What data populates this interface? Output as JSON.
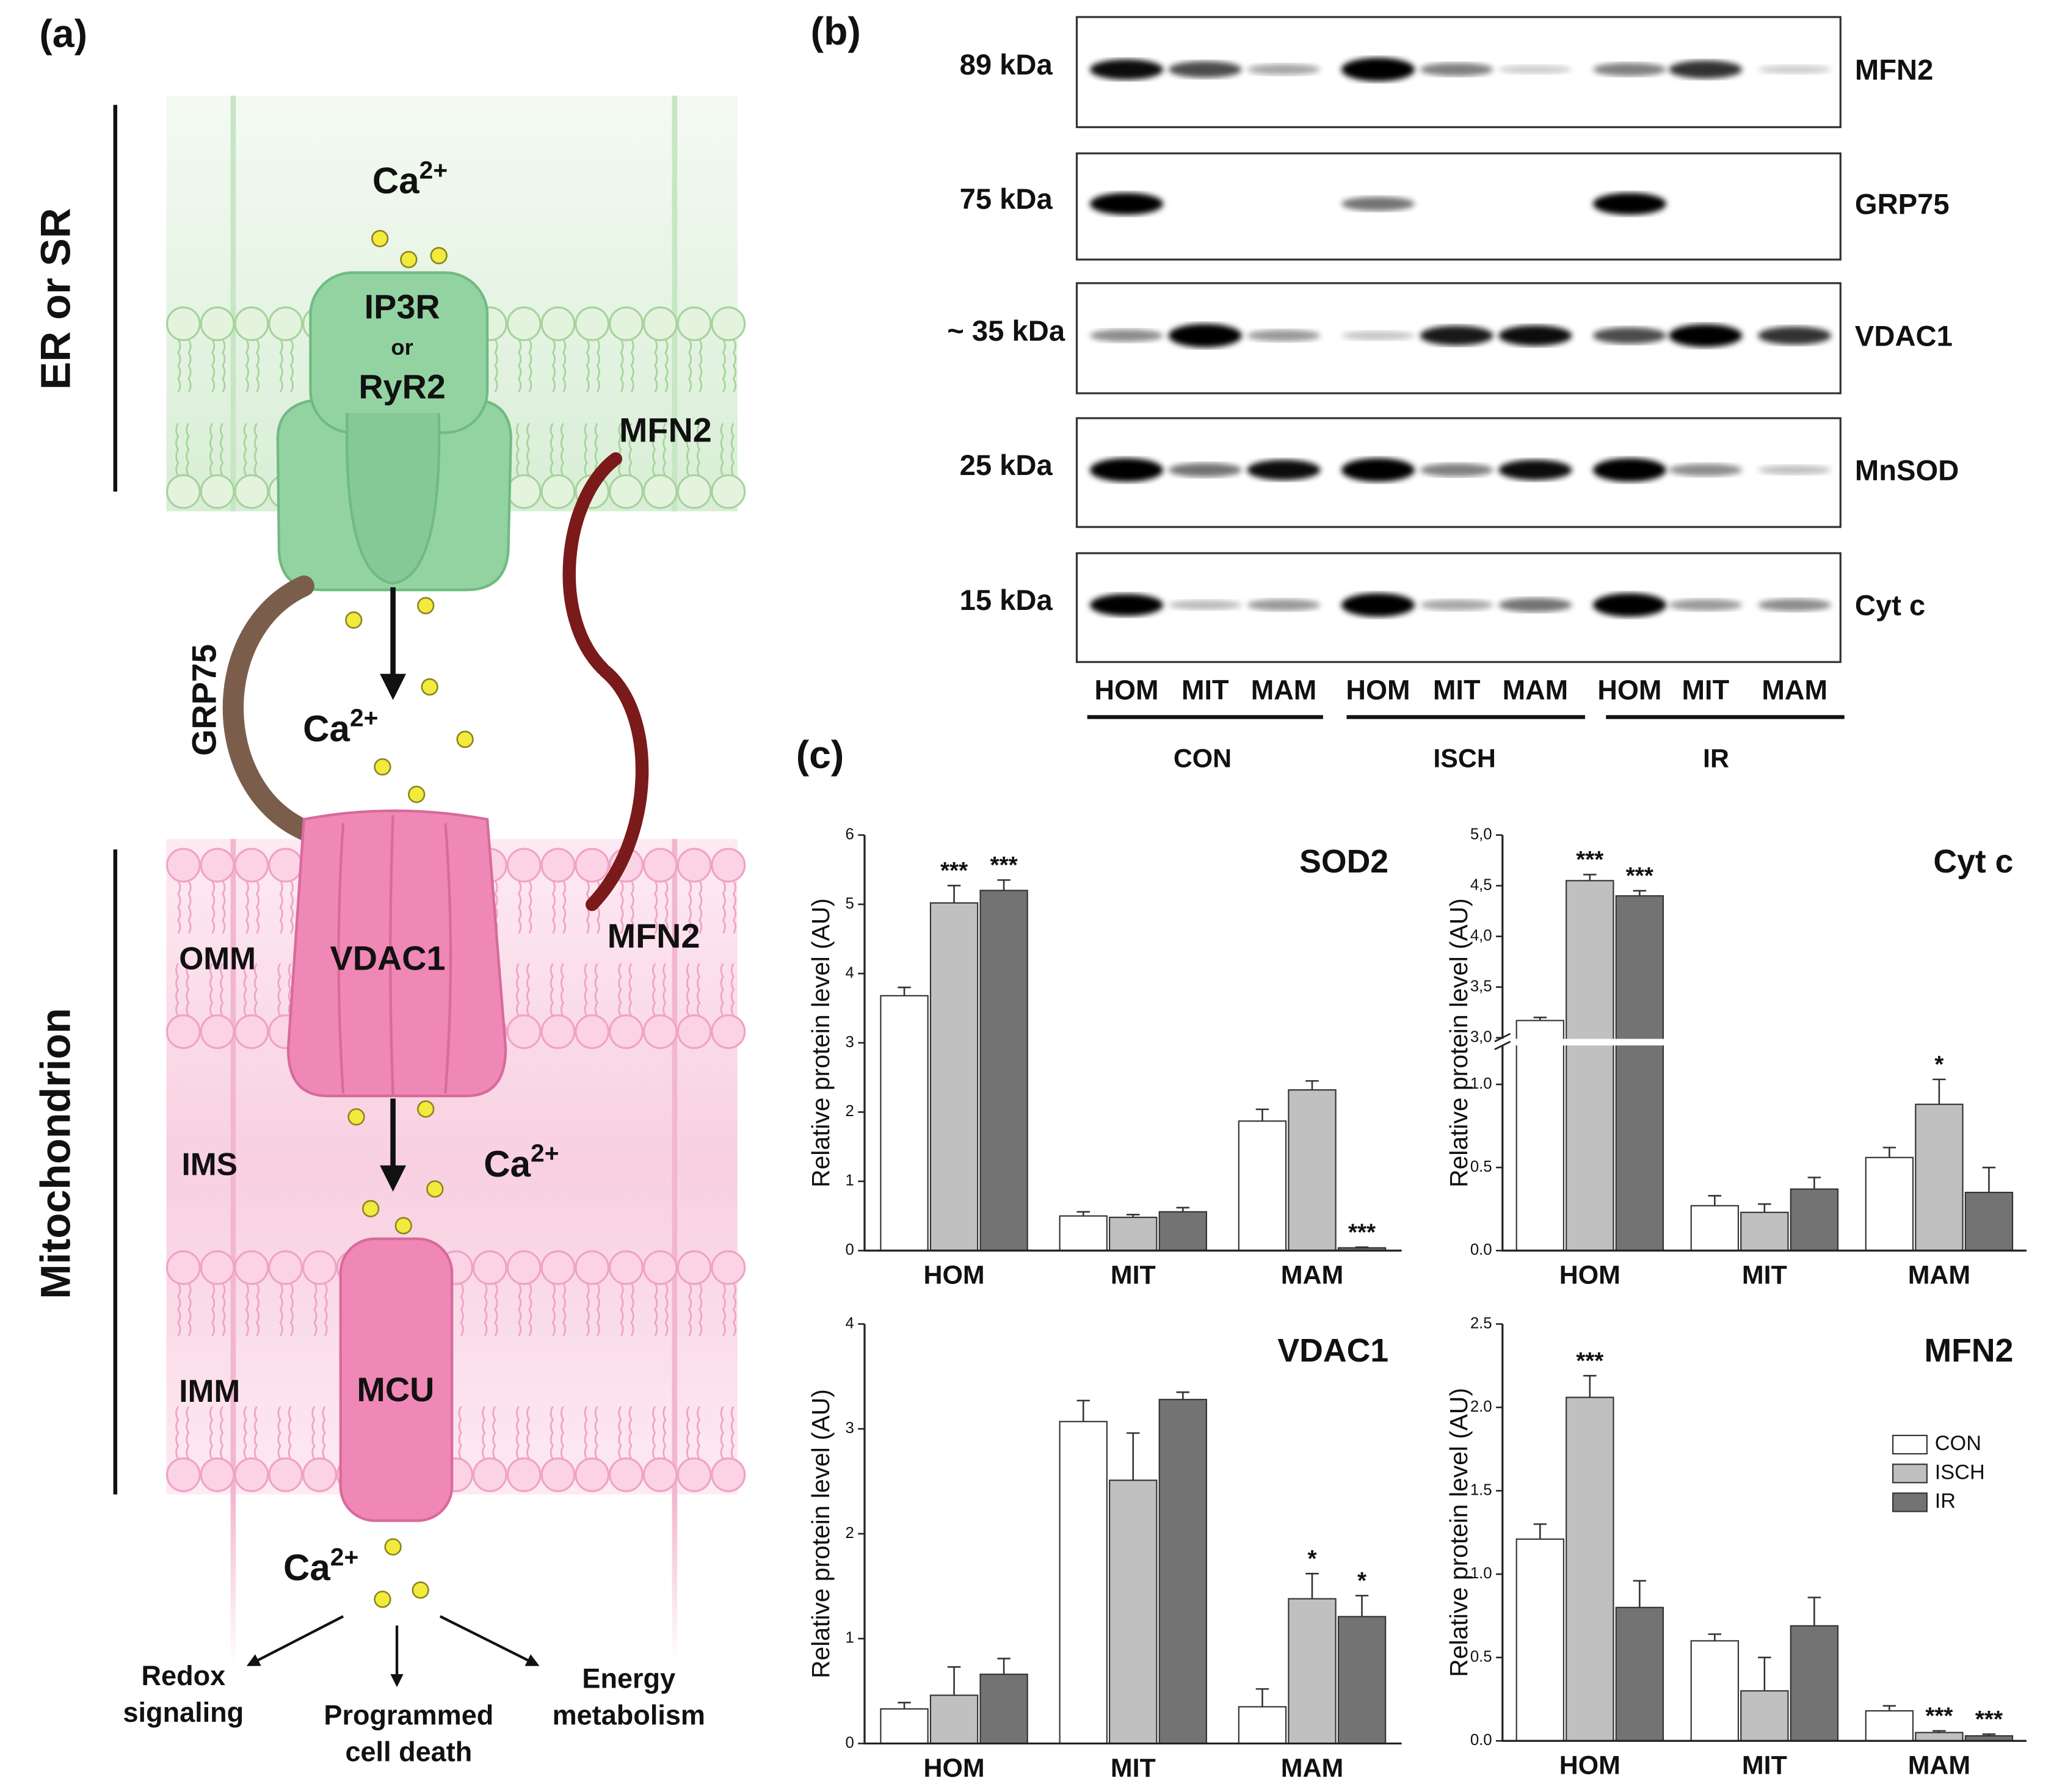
{
  "figure": {
    "panel_labels": [
      "(a)",
      "(b)",
      "(c)"
    ]
  },
  "diagram": {
    "compartments": [
      "ER or SR",
      "Mitochondrion"
    ],
    "channel": [
      "IP3R",
      "or",
      "RyR2"
    ],
    "tethers": [
      "MFN2",
      "GRP75",
      "MFN2"
    ],
    "membranes": [
      "OMM",
      "IMS",
      "IMM"
    ],
    "pores": [
      "VDAC1",
      "MCU"
    ],
    "calcium": [
      {
        "base": "Ca",
        "sup": "2+"
      },
      {
        "base": "Ca",
        "sup": "2+"
      },
      {
        "base": "Ca",
        "sup": "2+"
      },
      {
        "base": "Ca",
        "sup": "2+"
      }
    ],
    "outcomes": [
      [
        "Redox",
        "signaling"
      ],
      [
        "Programmed",
        "cell death"
      ],
      [
        "Energy",
        "metabolism"
      ]
    ]
  },
  "blot": {
    "rows": [
      {
        "marker": "89 kDa",
        "protein": "MFN2"
      },
      {
        "marker": "75 kDa",
        "protein": "GRP75"
      },
      {
        "marker": "~ 35 kDa",
        "protein": "VDAC1"
      },
      {
        "marker": "25 kDa",
        "protein": "MnSOD"
      },
      {
        "marker": "15 kDa",
        "protein": "Cyt c"
      }
    ],
    "lanes": [
      "HOM",
      "MIT",
      "MAM",
      "HOM",
      "MIT",
      "MAM",
      "HOM",
      "MIT",
      "MAM"
    ],
    "groups": [
      "CON",
      "ISCH",
      "IR"
    ]
  },
  "chart_data": [
    {
      "type": "bar",
      "title": "SOD2",
      "ylabel": "Relative protein level (AU)",
      "categories": [
        "HOM",
        "MIT",
        "MAM"
      ],
      "series": [
        {
          "name": "CON",
          "color": "#ffffff",
          "values": [
            3.68,
            0.5,
            1.87
          ],
          "errors": [
            0.12,
            0.06,
            0.17
          ],
          "significance": [
            null,
            null,
            null
          ]
        },
        {
          "name": "ISCH",
          "color": "#c0c0c0",
          "values": [
            5.02,
            0.48,
            2.32
          ],
          "errors": [
            0.25,
            0.04,
            0.13
          ],
          "significance": [
            "***",
            null,
            null
          ]
        },
        {
          "name": "IR",
          "color": "#737373",
          "values": [
            5.2,
            0.56,
            0.04
          ],
          "errors": [
            0.15,
            0.06,
            0.01
          ],
          "significance": [
            "***",
            null,
            "***"
          ]
        }
      ],
      "ylim": [
        0,
        6
      ],
      "yticks": [
        0,
        1,
        2,
        3,
        4,
        5,
        6
      ],
      "legend": null
    },
    {
      "type": "bar",
      "title": "Cyt c",
      "ylabel": "Relative protein level (AU)",
      "categories": [
        "HOM",
        "MIT",
        "MAM"
      ],
      "series": [
        {
          "name": "CON",
          "color": "#ffffff",
          "values": [
            3.17,
            0.27,
            0.56
          ],
          "errors": [
            0.03,
            0.06,
            0.06
          ],
          "significance": [
            null,
            null,
            null
          ]
        },
        {
          "name": "ISCH",
          "color": "#c0c0c0",
          "values": [
            4.55,
            0.23,
            0.88
          ],
          "errors": [
            0.06,
            0.05,
            0.15
          ],
          "significance": [
            "***",
            null,
            "*"
          ]
        },
        {
          "name": "IR",
          "color": "#737373",
          "values": [
            4.4,
            0.37,
            0.35
          ],
          "errors": [
            0.05,
            0.07,
            0.15
          ],
          "significance": [
            "***",
            null,
            null
          ]
        }
      ],
      "ylim": [
        0,
        5
      ],
      "ybreak": [
        1.25,
        2.95
      ],
      "yticks": [
        {
          "value": 0,
          "label": "0.0"
        },
        0.5,
        {
          "value": 1,
          "label": "1.0"
        },
        {
          "value": 3,
          "label": "3,0"
        },
        {
          "value": 3.5,
          "label": "3,5"
        },
        {
          "value": 4,
          "label": "4,0"
        },
        {
          "value": 4.5,
          "label": "4,5"
        },
        {
          "value": 5,
          "label": "5,0"
        }
      ],
      "legend": null
    },
    {
      "type": "bar",
      "title": "VDAC1",
      "ylabel": "Relative protein level (AU)",
      "categories": [
        "HOM",
        "MIT",
        "MAM"
      ],
      "series": [
        {
          "name": "CON",
          "color": "#ffffff",
          "values": [
            0.33,
            3.07,
            0.35
          ],
          "errors": [
            0.06,
            0.2,
            0.17
          ],
          "significance": [
            null,
            null,
            null
          ]
        },
        {
          "name": "ISCH",
          "color": "#c0c0c0",
          "values": [
            0.46,
            2.51,
            1.38
          ],
          "errors": [
            0.27,
            0.45,
            0.24
          ],
          "significance": [
            null,
            null,
            "*"
          ]
        },
        {
          "name": "IR",
          "color": "#737373",
          "values": [
            0.66,
            3.28,
            1.21
          ],
          "errors": [
            0.15,
            0.07,
            0.2
          ],
          "significance": [
            null,
            null,
            "*"
          ]
        }
      ],
      "ylim": [
        0,
        4
      ],
      "yticks": [
        0,
        1,
        2,
        3,
        4
      ],
      "legend": null
    },
    {
      "type": "bar",
      "title": "MFN2",
      "ylabel": "Relative protein level (AU)",
      "categories": [
        "HOM",
        "MIT",
        "MAM"
      ],
      "series": [
        {
          "name": "CON",
          "color": "#ffffff",
          "values": [
            1.21,
            0.6,
            0.18
          ],
          "errors": [
            0.09,
            0.04,
            0.03
          ],
          "significance": [
            null,
            null,
            null
          ]
        },
        {
          "name": "ISCH",
          "color": "#c0c0c0",
          "values": [
            2.06,
            0.3,
            0.05
          ],
          "errors": [
            0.13,
            0.2,
            0.01
          ],
          "significance": [
            "***",
            null,
            "***"
          ]
        },
        {
          "name": "IR",
          "color": "#737373",
          "values": [
            0.8,
            0.69,
            0.03
          ],
          "errors": [
            0.16,
            0.17,
            0.01
          ],
          "significance": [
            null,
            null,
            "***"
          ]
        }
      ],
      "ylim": [
        0,
        2.5
      ],
      "yticks": [
        {
          "value": 0,
          "label": "0.0"
        },
        0.5,
        {
          "value": 1,
          "label": "1.0"
        },
        1.5,
        {
          "value": 2,
          "label": "2.0"
        },
        2.5
      ],
      "legend": "right"
    }
  ]
}
